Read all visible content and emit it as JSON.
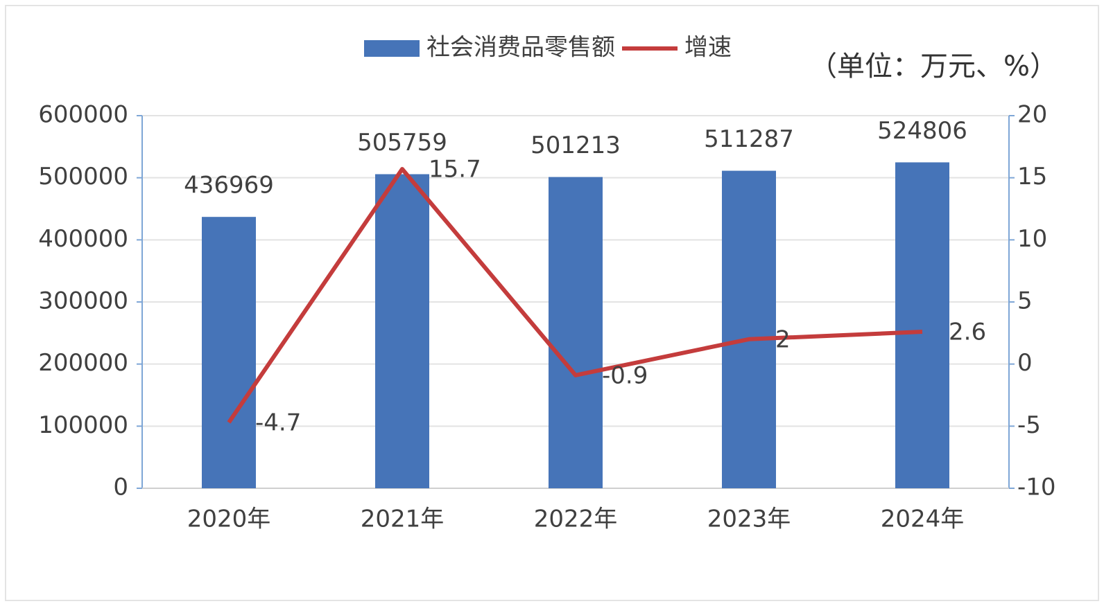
{
  "chart_data": {
    "type": "combo",
    "annotation": "（单位：万元、%）",
    "categories": [
      "2020年",
      "2021年",
      "2022年",
      "2023年",
      "2024年"
    ],
    "series": [
      {
        "name": "社会消费品零售额",
        "type": "bar",
        "color": "#4674b8",
        "values": [
          436969,
          505759,
          501213,
          511287,
          524806
        ]
      },
      {
        "name": "增速",
        "type": "line",
        "axis": "y2",
        "color": "#c43c3c",
        "values": [
          -4.7,
          15.7,
          -0.9,
          2,
          2.6
        ]
      }
    ],
    "ylim": [
      0,
      600000
    ],
    "yticks": [
      0,
      100000,
      200000,
      300000,
      400000,
      500000,
      600000
    ],
    "y2lim": [
      -10,
      20
    ],
    "y2ticks": [
      -10,
      -5,
      0,
      5,
      10,
      15,
      20
    ],
    "grid": true,
    "legend": "top"
  }
}
